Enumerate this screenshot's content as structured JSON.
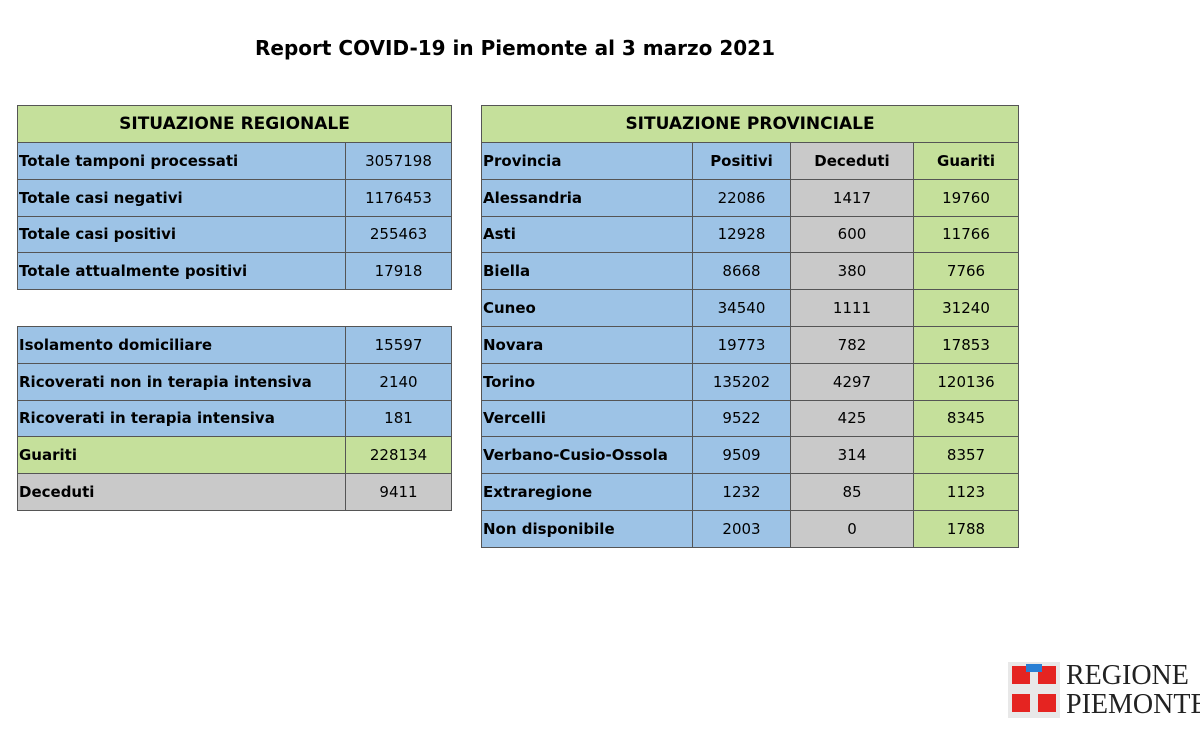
{
  "header": {
    "title": "Report COVID-19 in Piemonte al 3 marzo 2021"
  },
  "regional": {
    "title": "SITUAZIONE REGIONALE",
    "rows": [
      [
        "Totale tamponi processati",
        3057198
      ],
      [
        "Totale casi negativi",
        1176453
      ],
      [
        "Totale casi positivi",
        255463
      ],
      [
        "Totale attualmente positivi",
        17918
      ]
    ]
  },
  "regional_detail": {
    "rows": [
      [
        "Isolamento domiciliare",
        15597
      ],
      [
        "Ricoverati non in terapia intensiva",
        2140
      ],
      [
        "Ricoverati in terapia intensiva",
        181
      ],
      [
        "Guariti",
        228134
      ],
      [
        "Deceduti",
        9411
      ]
    ]
  },
  "provincial": {
    "title": "SITUAZIONE PROVINCIALE",
    "columns": [
      "Provincia",
      "Positivi",
      "Deceduti",
      "Guariti"
    ],
    "rows": [
      [
        "Alessandria",
        22086,
        1417,
        19760
      ],
      [
        "Asti",
        12928,
        600,
        11766
      ],
      [
        "Biella",
        8668,
        380,
        7766
      ],
      [
        "Cuneo",
        34540,
        1111,
        31240
      ],
      [
        "Novara",
        19773,
        782,
        17853
      ],
      [
        "Torino",
        135202,
        4297,
        120136
      ],
      [
        "Vercelli",
        9522,
        425,
        8345
      ],
      [
        "Verbano-Cusio-Ossola",
        9509,
        314,
        8357
      ],
      [
        "Extraregione",
        1232,
        85,
        1123
      ],
      [
        "Non disponibile",
        2003,
        0,
        1788
      ]
    ]
  },
  "logo": {
    "line1": "REGIONE",
    "line2": "PIEMONTE"
  }
}
